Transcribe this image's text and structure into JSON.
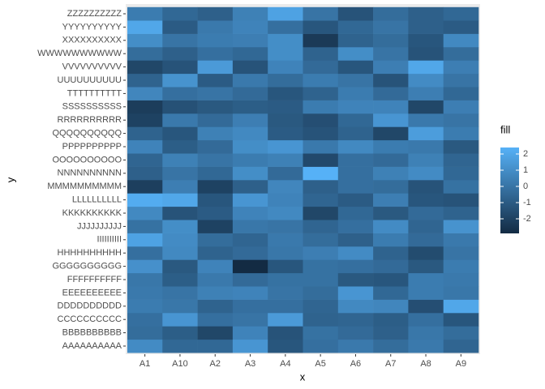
{
  "chart_data": {
    "type": "heatmap",
    "x_label": "x",
    "y_label": "y",
    "x_categories": [
      "A1",
      "A10",
      "A2",
      "A3",
      "A4",
      "A5",
      "A6",
      "A7",
      "A8",
      "A9"
    ],
    "y_categories": [
      "AAAAAAAAAA",
      "BBBBBBBBBB",
      "CCCCCCCCCC",
      "DDDDDDDDDD",
      "EEEEEEEEEE",
      "FFFFFFFFFF",
      "GGGGGGGGGG",
      "HHHHHHHHHH",
      "IIIIIIIIII",
      "JJJJJJJJJJ",
      "KKKKKKKKKK",
      "LLLLLLLLLL",
      "MMMMMMMMMM",
      "NNNNNNNNNN",
      "OOOOOOOOOO",
      "PPPPPPPPPP",
      "QQQQQQQQQQ",
      "RRRRRRRRRR",
      "SSSSSSSSSS",
      "TTTTTTTTTT",
      "UUUUUUUUUU",
      "VVVVVVVVVV",
      "WWWWWWWWWW",
      "XXXXXXXXXX",
      "YYYYYYYYYY",
      "ZZZZZZZZZZ"
    ],
    "values": [
      [
        0.9,
        -0.5,
        -0.5,
        1.3,
        -1.2,
        -0.2,
        0.2,
        -0.3,
        0.2,
        -0.6
      ],
      [
        -0.3,
        -0.9,
        -1.8,
        0.6,
        -1.3,
        -0.1,
        -0.4,
        -0.8,
        0.1,
        -0.3
      ],
      [
        -0.2,
        1.3,
        -0.2,
        0,
        1.5,
        -0.7,
        -0.6,
        -0.9,
        -0.2,
        -1.2
      ],
      [
        0.3,
        0.1,
        -0.7,
        -0.2,
        -0.2,
        -0.6,
        0.8,
        0.7,
        -1.5,
        2.0
      ],
      [
        0.2,
        0,
        0.5,
        0.6,
        0,
        -0.3,
        1.3,
        -0.5,
        0.3,
        0.1
      ],
      [
        0.1,
        -0.9,
        0.2,
        -0.4,
        -0.1,
        -0.1,
        -1.1,
        -1.2,
        0.3,
        0.2
      ],
      [
        1.1,
        -1.1,
        0.6,
        -2.9,
        -1.2,
        -0.1,
        -0.2,
        -0.4,
        -1.1,
        0.3
      ],
      [
        -0.2,
        0.8,
        -0.7,
        -0.4,
        0.1,
        0.4,
        0.9,
        -0.7,
        -1.6,
        0
      ],
      [
        1.8,
        0.9,
        -0.3,
        -0.6,
        0.2,
        -0.3,
        -0.8,
        0.3,
        -0.4,
        0.2
      ],
      [
        -0.1,
        1.0,
        -2.0,
        0.1,
        0,
        -0.6,
        -0.2,
        0.9,
        -0.6,
        1.2
      ],
      [
        0.8,
        -1.3,
        -1.0,
        0.6,
        0.8,
        -1.8,
        -0.5,
        -1.1,
        -0.4,
        -0.7
      ],
      [
        2.2,
        2.0,
        -1.2,
        1.3,
        0.6,
        -0.6,
        -1.0,
        0.4,
        -1.2,
        -1.3
      ],
      [
        -2.1,
        0.4,
        -2.0,
        -0.8,
        0.7,
        -0.8,
        -0.2,
        -0.3,
        -1.3,
        -0.1
      ],
      [
        -0.8,
        0,
        -0.5,
        1.0,
        -0.4,
        2.4,
        -0.2,
        0.5,
        0.9,
        -0.5
      ],
      [
        -0.6,
        0.5,
        0,
        0.3,
        0.5,
        -1.7,
        -0.2,
        -0.4,
        0.5,
        -0.6
      ],
      [
        0.6,
        -0.9,
        -0.4,
        1.0,
        1.3,
        0.2,
        0.8,
        0.3,
        0.2,
        -1.1
      ],
      [
        -0.7,
        -1.2,
        0.5,
        0.8,
        -1.0,
        -1.3,
        -0.7,
        -1.8,
        1.6,
        0.3
      ],
      [
        -2.0,
        0.2,
        -0.4,
        0.4,
        -1.1,
        -1.5,
        -0.5,
        1.3,
        0.2,
        0
      ],
      [
        -2.2,
        -1.4,
        -1.1,
        -0.9,
        -1.0,
        0.3,
        0.6,
        0.6,
        -1.8,
        0.4
      ],
      [
        0.7,
        -0.2,
        0,
        -0.4,
        -1.2,
        -0.7,
        0.3,
        -0.4,
        0.4,
        -0.5
      ],
      [
        -0.7,
        1.2,
        -1.0,
        0.2,
        -0.3,
        0.3,
        0,
        -1.3,
        0.9,
        0
      ],
      [
        -1.8,
        -1.3,
        1.5,
        -1.3,
        0.6,
        -0.4,
        -1.2,
        0.4,
        2.0,
        0.4
      ],
      [
        -0.3,
        -0.8,
        -0.2,
        -0.5,
        1.0,
        -0.7,
        1.0,
        0,
        -1.3,
        -0.3
      ],
      [
        1.0,
        0,
        0.3,
        0.4,
        1.0,
        -2.3,
        -0.7,
        -0.3,
        -1.2,
        0.8
      ],
      [
        2.0,
        -1.0,
        0.2,
        0.6,
        -0.2,
        -1.2,
        -0.5,
        0,
        -0.8,
        -1.0
      ],
      [
        0.3,
        -0.5,
        -0.8,
        0.5,
        1.8,
        0,
        -1.3,
        -0.3,
        -0.8,
        -0.5
      ]
    ],
    "legend": {
      "title": "fill",
      "lim": [
        -2.9,
        2.4
      ],
      "ticks": [
        -2,
        -1,
        0,
        1,
        2
      ],
      "low_color": "#132B43",
      "high_color": "#56B1F7"
    }
  }
}
